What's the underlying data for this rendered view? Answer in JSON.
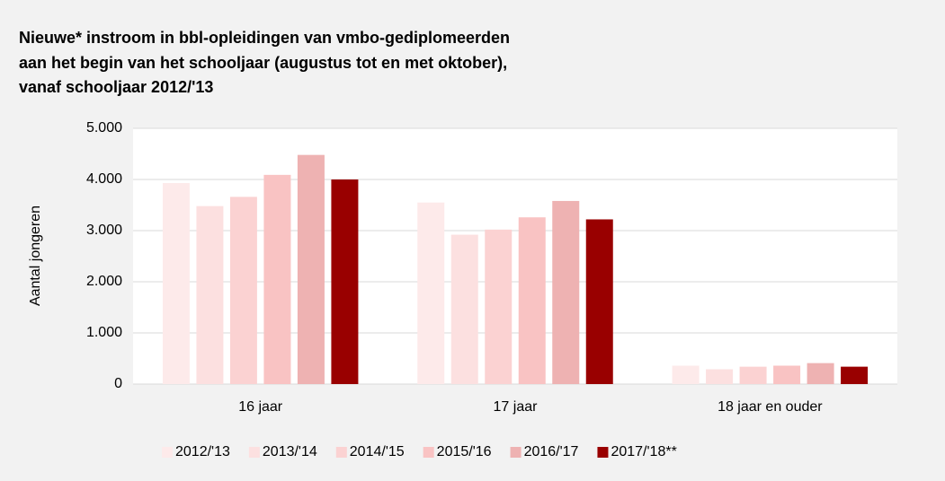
{
  "chart_data": {
    "type": "bar",
    "title": [
      "Nieuwe* instroom in bbl-opleidingen van vmbo-gediplomeerden",
      "aan het begin van het schooljaar (augustus tot en met oktober),",
      "vanaf schooljaar 2012/'13"
    ],
    "y_label": "Aantal jongeren",
    "categories": [
      "16 jaar",
      "17 jaar",
      "18 jaar en ouder"
    ],
    "series": [
      {
        "name": "2012/'13",
        "color": "#fdeaea",
        "values": [
          3930,
          3550,
          360
        ]
      },
      {
        "name": "2013/'14",
        "color": "#fce0e0",
        "values": [
          3480,
          2920,
          290
        ]
      },
      {
        "name": "2014/'15",
        "color": "#fbd2d2",
        "values": [
          3660,
          3020,
          340
        ]
      },
      {
        "name": "2015/'16",
        "color": "#f9c3c3",
        "values": [
          4090,
          3260,
          360
        ]
      },
      {
        "name": "2016/'17",
        "color": "#eeb2b2",
        "values": [
          4480,
          3580,
          410
        ]
      },
      {
        "name": "2017/'18**",
        "color": "#990000",
        "values": [
          4000,
          3220,
          340
        ]
      }
    ],
    "ylim": [
      0,
      5000
    ],
    "yticks": [
      0,
      {
        "value": 1000,
        "label": "1.000"
      },
      {
        "value": 2000,
        "label": "2.000"
      },
      {
        "value": 3000,
        "label": "3.000"
      },
      {
        "value": 4000,
        "label": "4.000"
      },
      {
        "value": 5000,
        "label": "5.000"
      }
    ],
    "grid": true,
    "legend": "bottom"
  }
}
